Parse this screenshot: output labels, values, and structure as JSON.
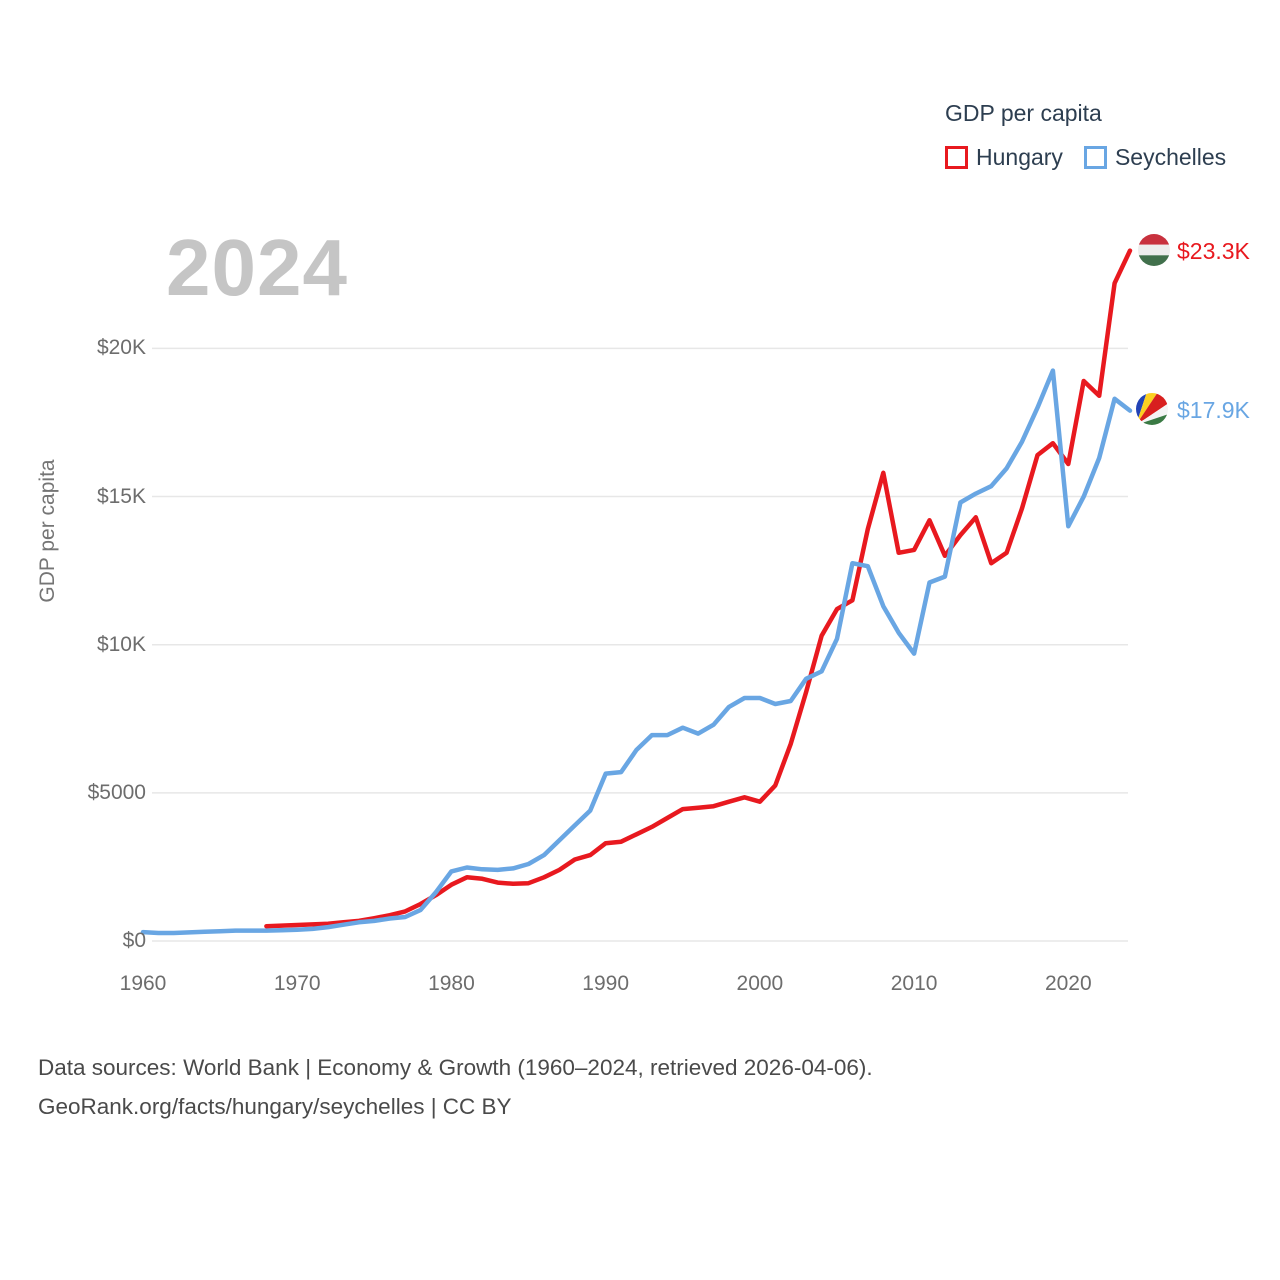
{
  "watermark": "2024",
  "legend": {
    "title": "GDP per capita",
    "items": [
      {
        "label": "Hungary",
        "color": "#e8191f"
      },
      {
        "label": "Seychelles",
        "color": "#69a6e3"
      }
    ]
  },
  "y_axis": {
    "title": "GDP per capita",
    "ticks": [
      {
        "label": "$0",
        "value": 0
      },
      {
        "label": "$5000",
        "value": 5000
      },
      {
        "label": "$10K",
        "value": 10000
      },
      {
        "label": "$15K",
        "value": 15000
      },
      {
        "label": "$20K",
        "value": 20000
      }
    ]
  },
  "x_axis": {
    "ticks": [
      1960,
      1970,
      1980,
      1990,
      2000,
      2010,
      2020
    ]
  },
  "end_labels": [
    {
      "series": "Hungary",
      "value": "$23.3K",
      "flag": "hungary-flag",
      "color": "#e8191f"
    },
    {
      "series": "Seychelles",
      "value": "$17.9K",
      "flag": "seychelles-flag",
      "color": "#69a6e3"
    }
  ],
  "footer": {
    "line1": "Data sources: World Bank | Economy & Growth (1960–2024, retrieved 2026-04-06).",
    "line2": "GeoRank.org/facts/hungary/seychelles | CC BY"
  },
  "chart_data": {
    "type": "line",
    "title": "GDP per capita",
    "xlabel": "",
    "ylabel": "GDP per capita",
    "xlim": [
      1960,
      2024
    ],
    "ylim": [
      0,
      24000
    ],
    "grid": "horizontal",
    "legend_position": "top-right",
    "series": [
      {
        "name": "Hungary",
        "color": "#e8191f",
        "x": [
          1968,
          1969,
          1970,
          1971,
          1972,
          1973,
          1974,
          1975,
          1976,
          1977,
          1978,
          1979,
          1980,
          1981,
          1982,
          1983,
          1984,
          1985,
          1986,
          1987,
          1988,
          1989,
          1990,
          1991,
          1992,
          1993,
          1994,
          1995,
          1996,
          1997,
          1998,
          1999,
          2000,
          2001,
          2002,
          2003,
          2004,
          2005,
          2006,
          2007,
          2008,
          2009,
          2010,
          2011,
          2012,
          2013,
          2014,
          2015,
          2016,
          2017,
          2018,
          2019,
          2020,
          2021,
          2022,
          2023,
          2024
        ],
        "values": [
          500,
          520,
          540,
          560,
          580,
          630,
          680,
          770,
          870,
          1000,
          1250,
          1550,
          1900,
          2150,
          2100,
          1970,
          1930,
          1950,
          2150,
          2400,
          2750,
          2900,
          3300,
          3350,
          3600,
          3850,
          4150,
          4450,
          4500,
          4550,
          4700,
          4850,
          4700,
          5250,
          6650,
          8400,
          10300,
          11200,
          11500,
          13900,
          15800,
          13100,
          13200,
          14200,
          13000,
          13700,
          14300,
          12750,
          13100,
          14600,
          16400,
          16800,
          16100,
          18900,
          18400,
          22200,
          23300
        ]
      },
      {
        "name": "Seychelles",
        "color": "#69a6e3",
        "x": [
          1960,
          1961,
          1962,
          1963,
          1964,
          1965,
          1966,
          1967,
          1968,
          1969,
          1970,
          1971,
          1972,
          1973,
          1974,
          1975,
          1976,
          1977,
          1978,
          1979,
          1980,
          1981,
          1982,
          1983,
          1984,
          1985,
          1986,
          1987,
          1988,
          1989,
          1990,
          1991,
          1992,
          1993,
          1994,
          1995,
          1996,
          1997,
          1998,
          1999,
          2000,
          2001,
          2002,
          2003,
          2004,
          2005,
          2006,
          2007,
          2008,
          2009,
          2010,
          2011,
          2012,
          2013,
          2014,
          2015,
          2016,
          2017,
          2018,
          2019,
          2020,
          2021,
          2022,
          2023,
          2024
        ],
        "values": [
          300,
          270,
          270,
          290,
          310,
          330,
          350,
          350,
          350,
          360,
          380,
          410,
          470,
          550,
          630,
          680,
          760,
          810,
          1050,
          1650,
          2350,
          2480,
          2420,
          2400,
          2450,
          2600,
          2900,
          3400,
          3900,
          4400,
          5650,
          5700,
          6450,
          6950,
          6950,
          7200,
          7000,
          7300,
          7900,
          8200,
          8200,
          8000,
          8100,
          8850,
          9100,
          10200,
          12750,
          12650,
          11300,
          10400,
          9700,
          12100,
          12300,
          14800,
          15100,
          15350,
          15950,
          16850,
          18000,
          19250,
          14000,
          15000,
          16300,
          18300,
          17900
        ]
      }
    ]
  }
}
